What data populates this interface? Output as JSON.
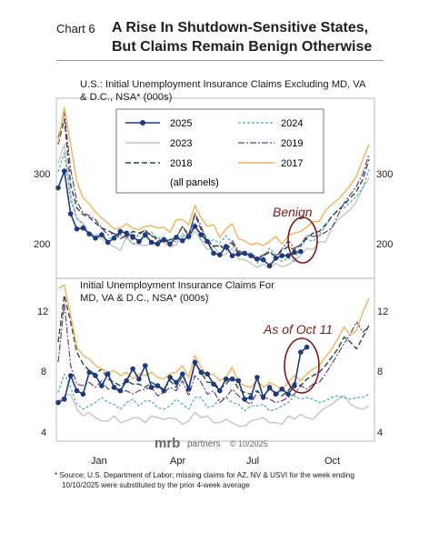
{
  "header": {
    "chart_number": "Chart 6",
    "title_line1": "A Rise In Shutdown-Sensitive States,",
    "title_line2": "But Claims Remain Benign Otherwise"
  },
  "colors": {
    "2025": "#1f3a7a",
    "2024": "#4aa8b8",
    "2023": "#c4c4c4",
    "2019": "#6b3d7a",
    "2018": "#2a4a3a",
    "2017": "#f2b35a",
    "annotation": "#7a1a1a"
  },
  "legend": {
    "note": "(all panels)"
  },
  "branding": {
    "logo": "mrb",
    "partners": "partners",
    "copyright": "© 10/2025"
  },
  "footnote": {
    "line1": "* Source: U.S. Department of Labor; missing claims for AZ, NV & USVI for the week ending",
    "line2": "10/10/2025 were substituted by the prior 4-week average"
  },
  "chart_data": [
    {
      "type": "line",
      "title": "U.S.: Initial Unemployment Insurance Claims Excluding MD, VA & D.C., NSA* (000s)",
      "title_line1": "U.S.: Initial Unemployment Insurance Claims Excluding MD, VA",
      "title_line2": "& D.C., NSA* (000s)",
      "x_ticks": [
        "Jan",
        "Apr",
        "Jul",
        "Oct"
      ],
      "x_tick_weeks": [
        3,
        16,
        29,
        42
      ],
      "ylim": [
        170,
        385
      ],
      "yticks": [
        200,
        300
      ],
      "annotation": "Benign",
      "series": [
        {
          "name": "2025",
          "values": [
            278,
            298,
            247,
            229,
            230,
            223,
            218,
            222,
            213,
            218,
            226,
            224,
            220,
            214,
            222,
            213,
            211,
            216,
            211,
            219,
            215,
            220,
            232,
            222,
            214,
            200,
            198,
            208,
            197,
            199,
            200,
            197,
            193,
            192,
            185,
            194,
            197,
            197,
            201,
            202
          ]
        },
        {
          "name": "2024",
          "values": [
            297,
            320,
            263,
            242,
            234,
            224,
            221,
            224,
            215,
            222,
            220,
            218,
            211,
            213,
            219,
            225,
            218,
            219,
            213,
            214,
            220,
            222,
            236,
            215,
            213,
            216,
            212,
            221,
            212,
            197,
            202,
            200,
            188,
            196,
            206,
            198,
            190,
            194,
            190,
            208,
            217,
            214,
            222,
            232,
            244,
            252,
            254,
            261,
            268,
            278,
            300
          ]
        },
        {
          "name": "2023",
          "values": [
            307,
            330,
            270,
            241,
            236,
            222,
            220,
            217,
            211,
            208,
            203,
            220,
            211,
            210,
            209,
            211,
            212,
            213,
            207,
            210,
            224,
            216,
            226,
            215,
            204,
            209,
            197,
            199,
            206,
            193,
            192,
            188,
            183,
            187,
            182,
            188,
            184,
            186,
            191,
            197,
            206,
            204,
            214,
            213,
            230,
            240,
            246,
            252,
            262,
            278,
            290
          ]
        },
        {
          "name": "2019",
          "values": [
            338,
            368,
            300,
            262,
            248,
            245,
            240,
            230,
            222,
            224,
            217,
            221,
            216,
            222,
            228,
            221,
            215,
            214,
            216,
            219,
            232,
            220,
            248,
            232,
            213,
            209,
            208,
            205,
            215,
            203,
            200,
            199,
            195,
            198,
            202,
            196,
            205,
            215,
            206,
            210,
            221,
            220,
            221,
            225,
            230,
            245,
            260,
            270,
            280,
            295,
            318
          ]
        },
        {
          "name": "2018",
          "values": [
            330,
            360,
            282,
            254,
            246,
            243,
            236,
            230,
            227,
            223,
            222,
            220,
            226,
            224,
            227,
            221,
            217,
            214,
            216,
            219,
            232,
            222,
            246,
            228,
            216,
            208,
            210,
            203,
            212,
            200,
            198,
            196,
            193,
            197,
            201,
            196,
            203,
            208,
            204,
            210,
            218,
            224,
            226,
            234,
            244,
            251,
            258,
            266,
            274,
            288,
            312
          ]
        },
        {
          "name": "2017",
          "values": [
            332,
            374,
            330,
            286,
            266,
            259,
            249,
            242,
            236,
            229,
            230,
            235,
            230,
            228,
            232,
            233,
            230,
            231,
            225,
            240,
            240,
            234,
            257,
            242,
            232,
            234,
            219,
            229,
            235,
            217,
            215,
            210,
            212,
            209,
            214,
            220,
            211,
            221,
            224,
            226,
            231,
            238,
            238,
            251,
            258,
            264,
            272,
            281,
            292,
            312,
            330
          ]
        }
      ]
    },
    {
      "type": "line",
      "title": "Initial Unemployment Insurance Claims For MD, VA & D.C., NSA* (000s)",
      "title_line1": "Initial Unemployment Insurance Claims For",
      "title_line2": "MD, VA & D.C., NSA* (000s)",
      "x_ticks": [
        "Jan",
        "Apr",
        "Jul",
        "Oct"
      ],
      "x_tick_weeks": [
        3,
        16,
        29,
        42
      ],
      "ylim": [
        3.3,
        13.0
      ],
      "yticks": [
        4,
        8,
        12
      ],
      "annotation": "As of Oct 11",
      "series": [
        {
          "name": "2025",
          "values": [
            5.6,
            5.8,
            7.2,
            6.3,
            6.1,
            7.4,
            7.2,
            6.6,
            7.3,
            6.5,
            6.3,
            6.9,
            7.6,
            7.0,
            7.8,
            6.5,
            6.6,
            6.3,
            7.1,
            6.8,
            7.3,
            6.4,
            8.0,
            7.4,
            7.3,
            6.7,
            6.3,
            7.0,
            7.0,
            6.9,
            5.8,
            5.9,
            7.1,
            5.9,
            6.5,
            6.1,
            6.4,
            6.1,
            6.6,
            8.6,
            8.9
          ]
        },
        {
          "name": "2024",
          "values": [
            6.2,
            7.3,
            6.5,
            5.5,
            5.2,
            5.4,
            5.6,
            5.9,
            5.6,
            5.5,
            5.2,
            5.6,
            5.8,
            5.4,
            5.7,
            5.7,
            5.3,
            5.2,
            5.4,
            5.8,
            5.5,
            5.2,
            5.9,
            5.9,
            5.3,
            5.4,
            5.8,
            5.9,
            5.6,
            5.5,
            5.1,
            5.4,
            5.4,
            5.5,
            5.1,
            5.2,
            5.4,
            5.6,
            6.0,
            5.8,
            5.9,
            5.8,
            5.6,
            5.7,
            5.9,
            6.0,
            5.9,
            5.8,
            5.9,
            5.9,
            6.1
          ]
        },
        {
          "name": "2023",
          "values": [
            5.7,
            6.0,
            6.1,
            5.2,
            4.8,
            5.0,
            4.7,
            4.5,
            4.5,
            4.8,
            4.4,
            4.5,
            4.7,
            4.7,
            4.4,
            4.8,
            4.7,
            4.6,
            4.7,
            4.6,
            4.3,
            4.5,
            5.0,
            4.7,
            4.8,
            4.4,
            4.4,
            4.6,
            4.4,
            4.2,
            4.2,
            4.5,
            4.6,
            4.7,
            4.4,
            4.4,
            4.3,
            4.8,
            4.6,
            4.9,
            4.7,
            4.6,
            5.0,
            5.3,
            5.5,
            5.8,
            6.0,
            5.5,
            5.3,
            5.2,
            5.4
          ]
        },
        {
          "name": "2019",
          "values": [
            8.0,
            11.5,
            7.8,
            6.7,
            6.6,
            6.8,
            6.5,
            6.9,
            6.4,
            6.5,
            6.2,
            6.3,
            6.1,
            6.3,
            6.4,
            6.5,
            6.0,
            6.2,
            6.5,
            6.3,
            6.9,
            6.0,
            7.2,
            6.8,
            6.1,
            6.3,
            5.6,
            5.9,
            6.4,
            6.0,
            5.7,
            5.5,
            6.2,
            5.9,
            5.8,
            5.6,
            5.7,
            5.9,
            6.1,
            6.6,
            6.4,
            6.7,
            6.8,
            7.3,
            7.9,
            8.5,
            9.1,
            9.7,
            10.4,
            9.8,
            10.1
          ]
        },
        {
          "name": "2018",
          "values": [
            9.2,
            12.0,
            10.4,
            8.6,
            7.9,
            7.5,
            7.3,
            7.6,
            7.0,
            6.8,
            6.6,
            6.9,
            6.7,
            6.7,
            6.5,
            6.8,
            6.6,
            6.4,
            6.9,
            6.5,
            7.2,
            6.5,
            7.9,
            7.4,
            6.8,
            6.8,
            6.4,
            6.7,
            7.1,
            6.4,
            6.2,
            6.1,
            6.3,
            6.0,
            6.4,
            6.2,
            6.0,
            6.3,
            6.8,
            6.6,
            7.0,
            7.2,
            7.4,
            7.8,
            8.3,
            8.8,
            9.5,
            9.2,
            8.8,
            9.5,
            10.2
          ]
        },
        {
          "name": "2017",
          "values": [
            12.4,
            12.6,
            10.8,
            8.9,
            8.4,
            8.2,
            7.8,
            7.6,
            7.4,
            7.5,
            7.2,
            7.4,
            7.0,
            7.3,
            7.2,
            7.4,
            7.1,
            7.0,
            7.3,
            7.4,
            7.8,
            7.1,
            8.4,
            7.7,
            7.2,
            7.3,
            6.9,
            7.1,
            7.7,
            6.8,
            6.6,
            6.5,
            6.9,
            6.5,
            6.8,
            6.6,
            6.4,
            6.8,
            7.2,
            6.9,
            7.3,
            7.6,
            7.8,
            8.3,
            8.8,
            9.4,
            10.1,
            9.6,
            9.9,
            11.0,
            11.8
          ]
        }
      ]
    }
  ]
}
